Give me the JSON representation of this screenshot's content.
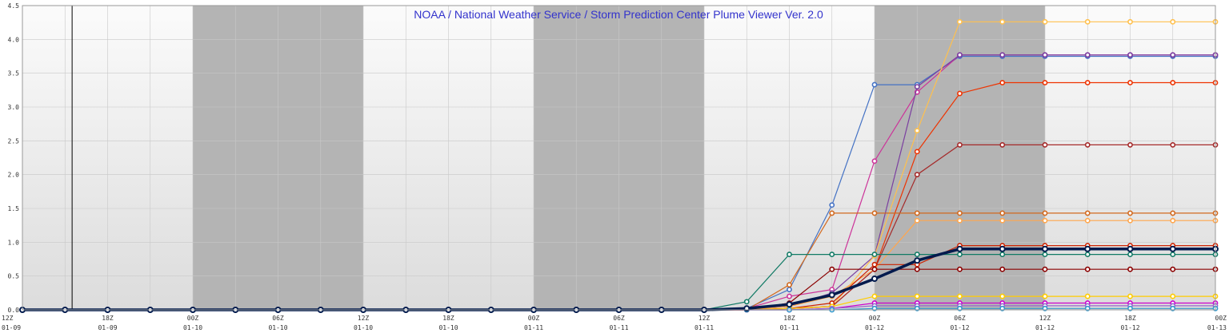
{
  "chart_data": {
    "type": "line",
    "title": "NOAA / National Weather Service / Storm Prediction Center Plume Viewer Ver. 2.0",
    "xlabel": "",
    "ylabel": "",
    "ylim": [
      0,
      4.5
    ],
    "y_ticks": [
      "0.0",
      "0.5",
      "1.0",
      "1.5",
      "2.0",
      "2.5",
      "3.0",
      "3.5",
      "4.0",
      "4.5"
    ],
    "x_ticks": [
      {
        "hour": "12Z",
        "date": "01-09"
      },
      {
        "hour": "18Z",
        "date": "01-09"
      },
      {
        "hour": "00Z",
        "date": "01-10"
      },
      {
        "hour": "06Z",
        "date": "01-10"
      },
      {
        "hour": "12Z",
        "date": "01-10"
      },
      {
        "hour": "18Z",
        "date": "01-10"
      },
      {
        "hour": "00Z",
        "date": "01-11"
      },
      {
        "hour": "06Z",
        "date": "01-11"
      },
      {
        "hour": "12Z",
        "date": "01-11"
      },
      {
        "hour": "18Z",
        "date": "01-11"
      },
      {
        "hour": "00Z",
        "date": "01-12"
      },
      {
        "hour": "06Z",
        "date": "01-12"
      },
      {
        "hour": "12Z",
        "date": "01-12"
      },
      {
        "hour": "18Z",
        "date": "01-12"
      },
      {
        "hour": "00Z",
        "date": "01-13"
      }
    ],
    "x_hours": [
      0,
      3,
      6,
      9,
      12,
      15,
      18,
      21,
      24,
      27,
      30,
      33,
      36,
      39,
      42,
      45,
      48,
      51,
      54,
      57,
      60,
      63,
      66,
      69,
      72,
      75,
      78,
      81,
      84
    ],
    "current_time_hour": 3.5,
    "shaded_ranges_hours": [
      [
        12,
        24
      ],
      [
        36,
        48
      ],
      [
        60,
        72
      ]
    ],
    "grid": true,
    "colors": {
      "title": "#3333cc",
      "shade": "#b4b4b4",
      "background_light": "#f8f8f8",
      "grid": "#c8c8c8"
    },
    "series": [
      {
        "color": "#4472c4",
        "values": [
          0,
          0,
          0,
          0,
          0,
          0,
          0,
          0,
          0,
          0,
          0,
          0,
          0,
          0,
          0,
          0,
          0,
          0.02,
          0.3,
          1.55,
          3.33,
          3.33,
          3.75,
          3.75,
          3.75,
          3.75,
          3.75,
          3.75,
          3.75
        ]
      },
      {
        "color": "#cc3399",
        "values": [
          0,
          0,
          0,
          0,
          0,
          0,
          0,
          0,
          0,
          0,
          0,
          0,
          0,
          0,
          0,
          0,
          0,
          0.02,
          0.2,
          0.3,
          2.2,
          3.22,
          3.77,
          3.77,
          3.77,
          3.77,
          3.77,
          3.77,
          3.77
        ]
      },
      {
        "color": "#7b3fa0",
        "values": [
          0,
          0,
          0,
          0,
          0,
          0,
          0,
          0,
          0,
          0,
          0,
          0,
          0,
          0,
          0,
          0,
          0,
          0,
          0.05,
          0.25,
          0.8,
          3.3,
          3.77,
          3.77,
          3.77,
          3.77,
          3.77,
          3.77,
          3.77
        ]
      },
      {
        "color": "#ffc04d",
        "values": [
          0,
          0,
          0,
          0,
          0,
          0,
          0,
          0,
          0,
          0,
          0,
          0,
          0,
          0,
          0,
          0,
          0,
          0,
          0.02,
          0.05,
          0.8,
          2.65,
          4.26,
          4.26,
          4.26,
          4.26,
          4.26,
          4.26,
          4.26
        ]
      },
      {
        "color": "#ee3300",
        "values": [
          0,
          0,
          0,
          0,
          0,
          0,
          0,
          0,
          0,
          0,
          0,
          0,
          0,
          0,
          0,
          0,
          0,
          0,
          0.02,
          0.05,
          0.6,
          2.34,
          3.2,
          3.36,
          3.36,
          3.36,
          3.36,
          3.36,
          3.36
        ]
      },
      {
        "color": "#a52a2a",
        "values": [
          0,
          0,
          0,
          0,
          0,
          0,
          0,
          0,
          0,
          0,
          0,
          0,
          0,
          0,
          0,
          0,
          0,
          0,
          0.02,
          0.05,
          0.6,
          2.0,
          2.44,
          2.44,
          2.44,
          2.44,
          2.44,
          2.44,
          2.44
        ]
      },
      {
        "color": "#d2691e",
        "values": [
          0,
          0,
          0,
          0,
          0,
          0,
          0,
          0,
          0,
          0,
          0,
          0,
          0,
          0,
          0,
          0,
          0,
          0,
          0.37,
          1.43,
          1.43,
          1.43,
          1.43,
          1.43,
          1.43,
          1.43,
          1.43,
          1.43,
          1.43
        ]
      },
      {
        "color": "#ffa64d",
        "values": [
          0,
          0,
          0,
          0,
          0,
          0,
          0,
          0,
          0,
          0,
          0,
          0,
          0,
          0,
          0,
          0,
          0,
          0,
          0.05,
          0.2,
          0.6,
          1.32,
          1.32,
          1.32,
          1.32,
          1.32,
          1.32,
          1.32,
          1.32
        ]
      },
      {
        "color": "#cc2200",
        "values": [
          0,
          0,
          0,
          0,
          0,
          0,
          0,
          0,
          0,
          0,
          0,
          0,
          0,
          0,
          0,
          0,
          0,
          0,
          0.02,
          0.1,
          0.67,
          0.67,
          0.95,
          0.95,
          0.95,
          0.95,
          0.95,
          0.95,
          0.95
        ]
      },
      {
        "color": "#117a65",
        "values": [
          0,
          0,
          0,
          0,
          0,
          0,
          0,
          0,
          0,
          0,
          0,
          0,
          0,
          0,
          0,
          0,
          0,
          0.12,
          0.82,
          0.82,
          0.82,
          0.82,
          0.82,
          0.82,
          0.82,
          0.82,
          0.82,
          0.82,
          0.82
        ]
      },
      {
        "color": "#8b0000",
        "values": [
          0,
          0,
          0,
          0,
          0,
          0,
          0,
          0,
          0,
          0,
          0,
          0,
          0,
          0,
          0,
          0,
          0,
          0,
          0.1,
          0.6,
          0.6,
          0.6,
          0.6,
          0.6,
          0.6,
          0.6,
          0.6,
          0.6,
          0.6
        ]
      },
      {
        "color": "#ffcc00",
        "values": [
          0,
          0,
          0,
          0,
          0,
          0,
          0,
          0,
          0,
          0,
          0,
          0,
          0,
          0,
          0,
          0,
          0,
          0,
          0.02,
          0.05,
          0.2,
          0.2,
          0.2,
          0.2,
          0.2,
          0.2,
          0.2,
          0.2,
          0.2
        ]
      },
      {
        "color": "#cc00cc",
        "values": [
          0,
          0,
          0,
          0,
          0,
          0,
          0,
          0,
          0,
          0,
          0,
          0,
          0,
          0,
          0,
          0,
          0,
          0,
          0,
          0.02,
          0.1,
          0.1,
          0.1,
          0.1,
          0.1,
          0.1,
          0.1,
          0.1,
          0.1
        ]
      },
      {
        "color": "#9966cc",
        "values": [
          0,
          0,
          0,
          0,
          0,
          0,
          0,
          0,
          0,
          0,
          0,
          0,
          0,
          0,
          0,
          0,
          0,
          0,
          0,
          0.02,
          0.06,
          0.06,
          0.06,
          0.06,
          0.06,
          0.06,
          0.06,
          0.06,
          0.06
        ]
      },
      {
        "color": "#3399cc",
        "values": [
          0,
          0,
          0,
          0,
          0,
          0,
          0,
          0,
          0,
          0,
          0,
          0,
          0,
          0,
          0,
          0,
          0,
          0,
          0,
          0,
          0.02,
          0.02,
          0.02,
          0.02,
          0.02,
          0.02,
          0.02,
          0.02,
          0.02
        ]
      },
      {
        "color": "#001a4d",
        "mean": true,
        "values": [
          0,
          0,
          0,
          0,
          0,
          0,
          0,
          0,
          0,
          0,
          0,
          0,
          0,
          0,
          0,
          0,
          0,
          0.02,
          0.08,
          0.22,
          0.46,
          0.73,
          0.9,
          0.9,
          0.9,
          0.9,
          0.9,
          0.9,
          0.9
        ]
      }
    ]
  }
}
